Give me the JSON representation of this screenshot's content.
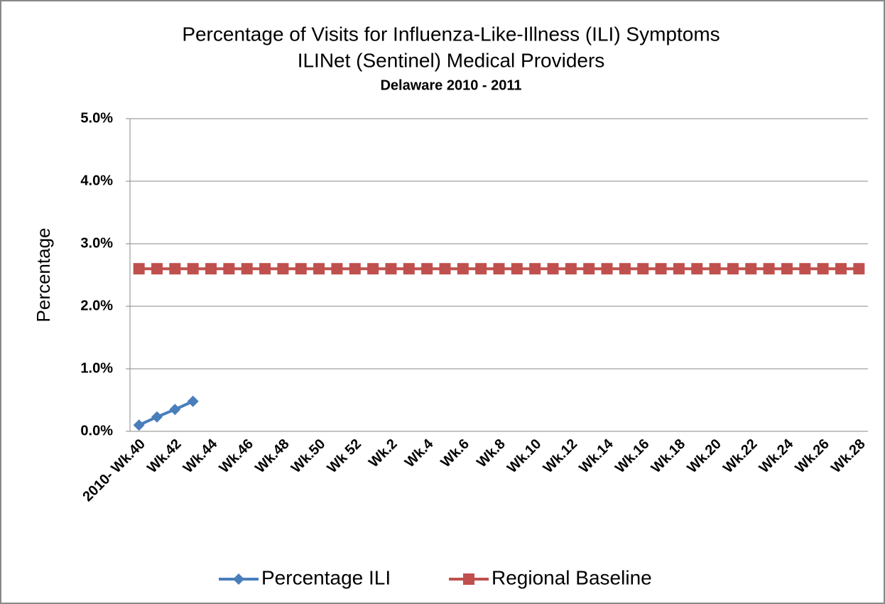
{
  "chart_data": {
    "type": "line",
    "title": [
      "Percentage of Visits for Influenza-Like-Illness (ILI) Symptoms",
      "ILINet (Sentinel) Medical Providers"
    ],
    "subtitle": "Delaware 2010 - 2011",
    "y_label": "Percentage",
    "categories": [
      "2010- Wk.40",
      null,
      "Wk.42",
      null,
      "Wk.44",
      null,
      "Wk.46",
      null,
      "Wk.48",
      null,
      "Wk.50",
      null,
      "Wk 52",
      null,
      "Wk.2",
      null,
      "Wk.4",
      null,
      "Wk.6",
      null,
      "Wk.8",
      null,
      "Wk.10",
      null,
      "Wk.12",
      null,
      "Wk.14",
      null,
      "Wk.16",
      null,
      "Wk.18",
      null,
      "Wk.20",
      null,
      "Wk.22",
      null,
      "Wk.24",
      null,
      "Wk.26",
      null,
      "Wk.28"
    ],
    "series": [
      {
        "name": "Percentage ILI",
        "color": "#4a7ebb",
        "marker": "diamond",
        "values": [
          0.1,
          0.23,
          0.35,
          0.48,
          null,
          null,
          null,
          null,
          null,
          null,
          null,
          null,
          null,
          null,
          null,
          null,
          null,
          null,
          null,
          null,
          null,
          null,
          null,
          null,
          null,
          null,
          null,
          null,
          null,
          null,
          null,
          null,
          null,
          null,
          null,
          null,
          null,
          null,
          null,
          null,
          null
        ]
      },
      {
        "name": "Regional Baseline",
        "color": "#c0504d",
        "marker": "square",
        "values": [
          2.6,
          2.6,
          2.6,
          2.6,
          2.6,
          2.6,
          2.6,
          2.6,
          2.6,
          2.6,
          2.6,
          2.6,
          2.6,
          2.6,
          2.6,
          2.6,
          2.6,
          2.6,
          2.6,
          2.6,
          2.6,
          2.6,
          2.6,
          2.6,
          2.6,
          2.6,
          2.6,
          2.6,
          2.6,
          2.6,
          2.6,
          2.6,
          2.6,
          2.6,
          2.6,
          2.6,
          2.6,
          2.6,
          2.6,
          2.6,
          2.6
        ]
      }
    ],
    "ylim": [
      0,
      5
    ],
    "yticks": [
      {
        "value": 0,
        "label": "0.0%"
      },
      {
        "value": 1,
        "label": "1.0%"
      },
      {
        "value": 2,
        "label": "2.0%"
      },
      {
        "value": 3,
        "label": "3.0%"
      },
      {
        "value": 4,
        "label": "4.0%"
      },
      {
        "value": 5,
        "label": "5.0%"
      }
    ],
    "grid": true,
    "legend": "bottom"
  }
}
